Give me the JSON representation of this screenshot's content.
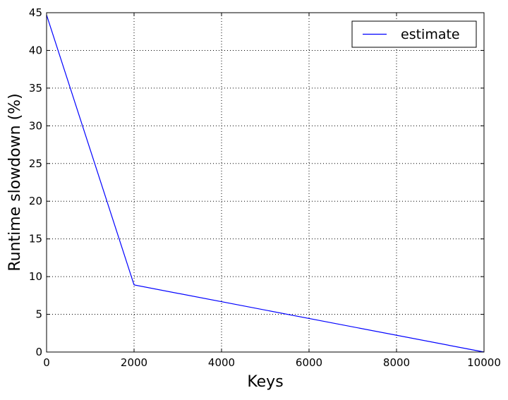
{
  "chart_data": {
    "type": "line",
    "title": "",
    "xlabel": "Keys",
    "ylabel": "Runtime slowdown (%)",
    "xlim": [
      0,
      10000
    ],
    "ylim": [
      0,
      45
    ],
    "xticks": [
      0,
      2000,
      4000,
      6000,
      8000,
      10000
    ],
    "yticks": [
      0,
      5,
      10,
      15,
      20,
      25,
      30,
      35,
      40,
      45
    ],
    "xtick_labels": [
      "0",
      "2000",
      "4000",
      "6000",
      "8000",
      "10000"
    ],
    "ytick_labels": [
      "0",
      "5",
      "10",
      "15",
      "20",
      "25",
      "30",
      "35",
      "40",
      "45"
    ],
    "grid": true,
    "legend_position": "top-right",
    "series": [
      {
        "name": "estimate",
        "color": "#0000ff",
        "x": [
          0,
          2000,
          10000
        ],
        "y": [
          44.7,
          8.9,
          0.0
        ]
      }
    ]
  }
}
